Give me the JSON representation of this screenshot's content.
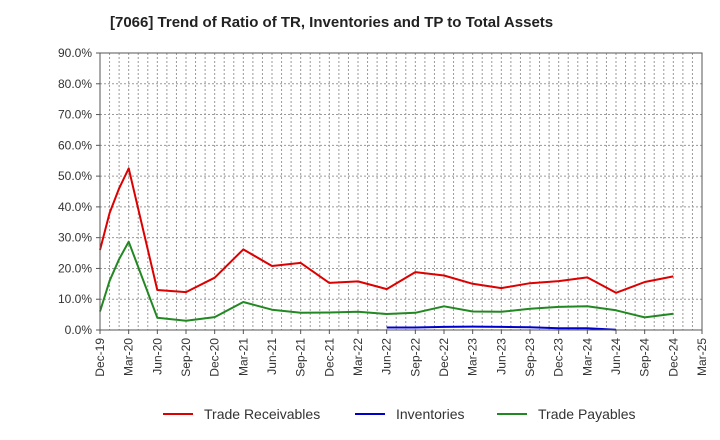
{
  "title": "[7066]  Trend of Ratio of TR, Inventories and TP to Total Assets",
  "chart_data": {
    "type": "line",
    "title": "[7066]  Trend of Ratio of TR, Inventories and TP to Total Assets",
    "xlabel": "",
    "ylabel": "",
    "x_ticks": [
      "Dec-19",
      "Mar-20",
      "Jun-20",
      "Sep-20",
      "Dec-20",
      "Mar-21",
      "Jun-21",
      "Sep-21",
      "Dec-21",
      "Mar-22",
      "Jun-22",
      "Sep-22",
      "Dec-22",
      "Mar-23",
      "Jun-23",
      "Sep-23",
      "Dec-23",
      "Mar-24",
      "Jun-24",
      "Sep-24",
      "Dec-24",
      "Mar-25"
    ],
    "y_ticks": [
      "0.0%",
      "10.0%",
      "20.0%",
      "30.0%",
      "40.0%",
      "50.0%",
      "60.0%",
      "70.0%",
      "80.0%",
      "90.0%"
    ],
    "ylim": [
      0,
      90
    ],
    "grid": true,
    "legend_position": "bottom",
    "series": [
      {
        "name": "Trade Receivables",
        "color": "#dd0000",
        "points": [
          [
            "Dec-19",
            26.0
          ],
          [
            "Jan-20",
            38.0
          ],
          [
            "Feb-20",
            46.0
          ],
          [
            "Mar-20",
            52.5
          ],
          [
            "Jun-20",
            13.0
          ],
          [
            "Sep-20",
            12.3
          ],
          [
            "Dec-20",
            17.0
          ],
          [
            "Mar-21",
            26.2
          ],
          [
            "Jun-21",
            20.8
          ],
          [
            "Sep-21",
            21.8
          ],
          [
            "Dec-21",
            15.3
          ],
          [
            "Mar-22",
            15.8
          ],
          [
            "Jun-22",
            13.3
          ],
          [
            "Sep-22",
            18.8
          ],
          [
            "Dec-22",
            17.7
          ],
          [
            "Mar-23",
            15.0
          ],
          [
            "Jun-23",
            13.6
          ],
          [
            "Sep-23",
            15.2
          ],
          [
            "Dec-23",
            15.9
          ],
          [
            "Mar-24",
            17.1
          ],
          [
            "Jun-24",
            12.1
          ],
          [
            "Sep-24",
            15.6
          ],
          [
            "Dec-24",
            17.4
          ]
        ]
      },
      {
        "name": "Inventories",
        "color": "#0000cc",
        "points": [
          [
            "Jun-22",
            0.8
          ],
          [
            "Sep-22",
            0.8
          ],
          [
            "Dec-22",
            1.0
          ],
          [
            "Mar-23",
            1.1
          ],
          [
            "Jun-23",
            1.0
          ],
          [
            "Sep-23",
            0.9
          ],
          [
            "Dec-23",
            0.6
          ],
          [
            "Mar-24",
            0.6
          ],
          [
            "Jun-24",
            0.1
          ]
        ]
      },
      {
        "name": "Trade Payables",
        "color": "#228822",
        "points": [
          [
            "Dec-19",
            6.0
          ],
          [
            "Jan-20",
            16.0
          ],
          [
            "Feb-20",
            23.0
          ],
          [
            "Mar-20",
            28.7
          ],
          [
            "Jun-20",
            4.0
          ],
          [
            "Sep-20",
            3.0
          ],
          [
            "Dec-20",
            4.2
          ],
          [
            "Mar-21",
            9.1
          ],
          [
            "Jun-21",
            6.6
          ],
          [
            "Sep-21",
            5.6
          ],
          [
            "Dec-21",
            5.7
          ],
          [
            "Mar-22",
            5.9
          ],
          [
            "Jun-22",
            5.2
          ],
          [
            "Sep-22",
            5.6
          ],
          [
            "Dec-22",
            7.7
          ],
          [
            "Mar-23",
            6.0
          ],
          [
            "Jun-23",
            5.9
          ],
          [
            "Sep-23",
            6.9
          ],
          [
            "Dec-23",
            7.5
          ],
          [
            "Mar-24",
            7.7
          ],
          [
            "Jun-24",
            6.4
          ],
          [
            "Sep-24",
            4.1
          ],
          [
            "Dec-24",
            5.3
          ]
        ]
      }
    ]
  }
}
